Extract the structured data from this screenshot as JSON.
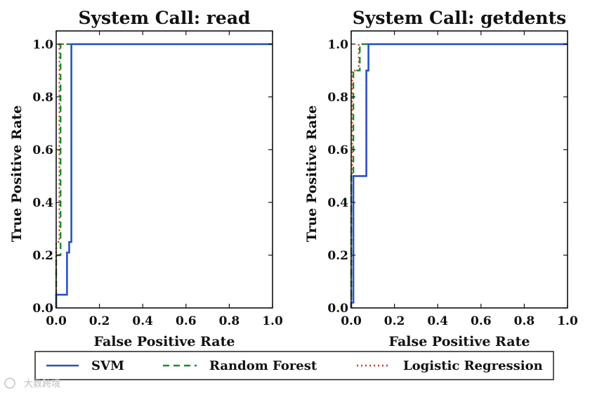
{
  "watermark": "大数跨境",
  "legend": {
    "entries": [
      {
        "label": "SVM",
        "color": "#2a52be",
        "style": "solid"
      },
      {
        "label": "Random Forest",
        "color": "#1f8a2c",
        "style": "dashed"
      },
      {
        "label": "Logistic Regression",
        "color": "#d7301f",
        "style": "dotted"
      }
    ]
  },
  "chart_data": [
    {
      "type": "line",
      "title": "System Call: read",
      "xlabel": "False Positive Rate",
      "ylabel": "True Positive Rate",
      "xlim": [
        0.0,
        1.0
      ],
      "ylim": [
        0.0,
        1.05
      ],
      "xticks": [
        "0.0",
        "0.2",
        "0.4",
        "0.6",
        "0.8",
        "1.0"
      ],
      "yticks": [
        "0.0",
        "0.2",
        "0.4",
        "0.6",
        "0.8",
        "1.0"
      ],
      "grid": false,
      "series": [
        {
          "name": "SVM",
          "x": [
            0.0,
            0.0,
            0.05,
            0.05,
            0.06,
            0.06,
            0.07,
            0.07,
            1.0
          ],
          "y": [
            0.0,
            0.05,
            0.05,
            0.21,
            0.21,
            0.25,
            0.25,
            1.0,
            1.0
          ]
        },
        {
          "name": "Random Forest",
          "x": [
            0.0,
            0.0,
            0.02,
            0.02,
            1.0
          ],
          "y": [
            0.0,
            0.2,
            0.2,
            1.0,
            1.0
          ]
        },
        {
          "name": "Logistic Regression",
          "x": [
            0.0,
            0.0,
            0.015,
            0.015,
            1.0
          ],
          "y": [
            0.0,
            0.25,
            0.25,
            1.0,
            1.0
          ]
        }
      ]
    },
    {
      "type": "line",
      "title": "System Call: getdents",
      "xlabel": "False Positive Rate",
      "ylabel": "True Positive Rate",
      "xlim": [
        0.0,
        1.0
      ],
      "ylim": [
        0.0,
        1.05
      ],
      "xticks": [
        "0.0",
        "0.2",
        "0.4",
        "0.6",
        "0.8",
        "1.0"
      ],
      "yticks": [
        "0.0",
        "0.2",
        "0.4",
        "0.6",
        "0.8",
        "1.0"
      ],
      "grid": false,
      "series": [
        {
          "name": "SVM",
          "x": [
            0.0,
            0.0,
            0.01,
            0.01,
            0.07,
            0.07,
            0.08,
            0.08,
            1.0
          ],
          "y": [
            0.0,
            0.02,
            0.02,
            0.5,
            0.5,
            0.9,
            0.9,
            1.0,
            1.0
          ]
        },
        {
          "name": "Random Forest",
          "x": [
            0.0,
            0.0,
            0.01,
            0.01,
            0.04,
            0.04,
            1.0
          ],
          "y": [
            0.0,
            0.5,
            0.5,
            0.9,
            0.9,
            1.0,
            1.0
          ]
        },
        {
          "name": "Logistic Regression",
          "x": [
            0.0,
            0.0,
            0.005,
            0.005,
            0.035,
            0.035,
            1.0
          ],
          "y": [
            0.0,
            0.5,
            0.5,
            0.9,
            0.9,
            1.0,
            1.0
          ]
        }
      ]
    }
  ]
}
